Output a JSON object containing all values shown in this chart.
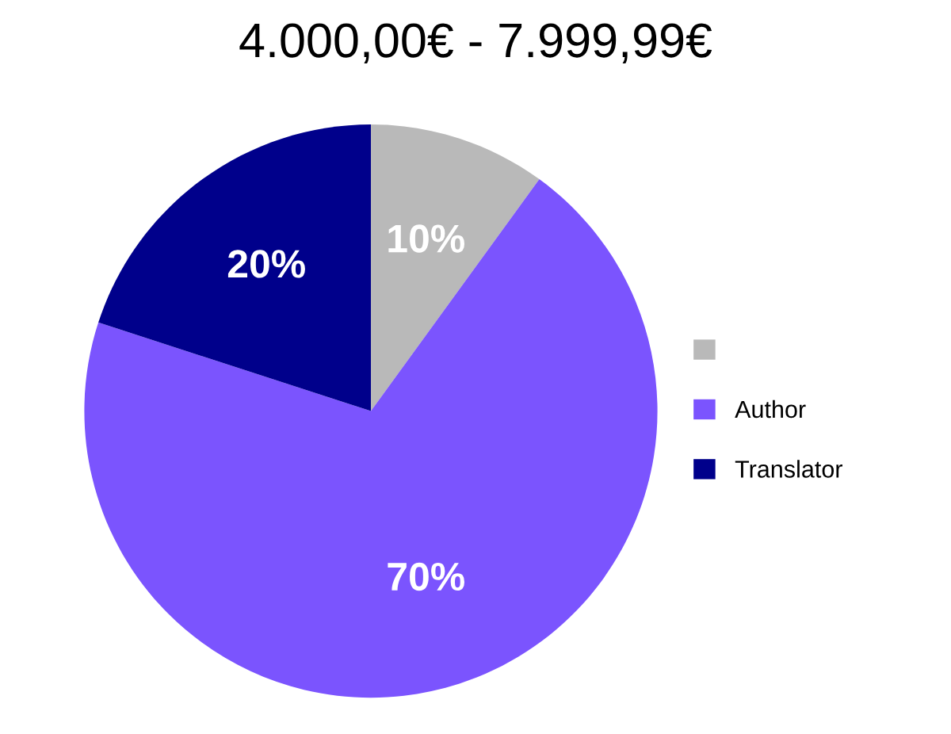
{
  "chart_data": {
    "type": "pie",
    "title": "4.000,00€ - 7.999,99€",
    "categories": [
      null,
      "Author",
      "Translator"
    ],
    "values": [
      10,
      70,
      20
    ],
    "colors": [
      "#b9b9b9",
      "#7b54fe",
      "#00008b"
    ],
    "value_labels": [
      "10%",
      "70%",
      "20%"
    ],
    "legend": "right"
  }
}
